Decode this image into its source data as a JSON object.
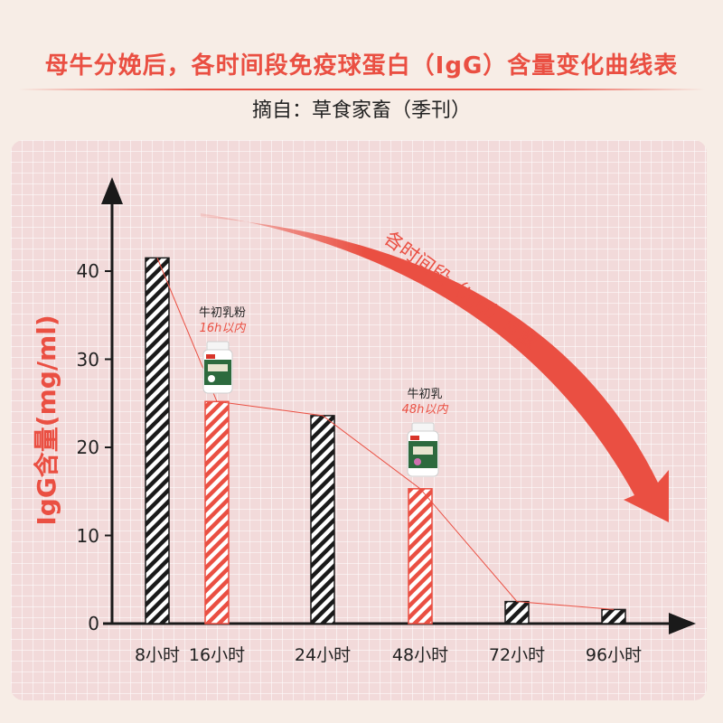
{
  "title": "母牛分娩后，各时间段免疫球蛋白（IgG）含量变化曲线表",
  "source": "摘自：草食家畜（季刊）",
  "colors": {
    "accent": "#ea4f42",
    "dark": "#1a1a1a"
  },
  "chart_data": {
    "type": "bar",
    "categories": [
      "8小时",
      "16小时",
      "24小时",
      "48小时",
      "72小时",
      "96小时"
    ],
    "values": [
      41.5,
      25.2,
      23.6,
      15.3,
      2.5,
      1.6
    ],
    "highlight": [
      false,
      true,
      false,
      true,
      false,
      false
    ],
    "ylabel": "IgG含量(mg/ml)",
    "ylim": [
      0,
      45
    ],
    "yticks": [
      "0",
      "10",
      "20",
      "30",
      "40"
    ],
    "trend_line": true,
    "grid": true,
    "trend_arrow_label": "各时间段（IgG）含量",
    "annotations": [
      {
        "category": "16小时",
        "name": "牛初乳粉",
        "time": "16h以内",
        "icon": "bottle-icon"
      },
      {
        "category": "48小时",
        "name": "牛初乳",
        "time": "48h以内",
        "icon": "bottle-icon"
      }
    ]
  }
}
